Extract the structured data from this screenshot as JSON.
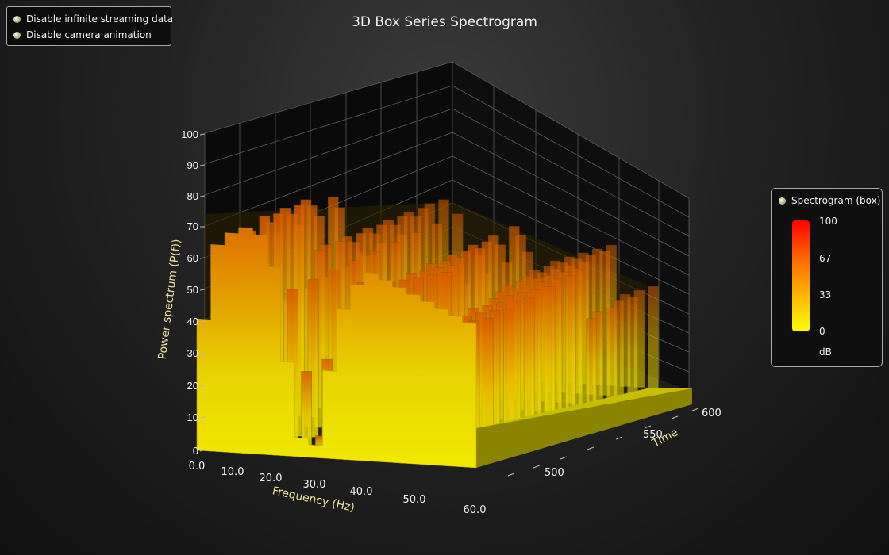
{
  "options": [
    {
      "label": "Disable infinite streaming data"
    },
    {
      "label": "Disable camera animation"
    }
  ],
  "chart_data": {
    "type": "3d-box-spectrogram",
    "title": "3D Box Series Spectrogram",
    "xlabel": "Frequency (Hz)",
    "ylabel": "Power spectrum (P(f))",
    "zlabel": "Time",
    "x_ticks": [
      "0.0",
      "10.0",
      "20.0",
      "30.0",
      "40.0",
      "50.0",
      "60.0"
    ],
    "y_ticks": [
      "0",
      "10",
      "20",
      "30",
      "40",
      "50",
      "60",
      "70",
      "80",
      "90",
      "100"
    ],
    "z_ticks": [
      "500",
      "550",
      "600"
    ],
    "xlim": [
      0,
      60
    ],
    "ylim": [
      0,
      100
    ],
    "zlim": [
      470,
      610
    ],
    "grid": true,
    "series": [
      {
        "name": "Spectrogram (box)",
        "front_profile_freq": [
          0,
          3,
          6,
          9,
          12,
          15,
          18,
          21,
          24,
          27,
          30,
          33,
          36,
          39,
          42,
          45,
          48,
          51,
          54,
          57,
          60
        ],
        "front_profile_power": [
          42,
          66,
          70,
          72,
          70,
          60,
          30,
          6,
          4,
          28,
          48,
          56,
          60,
          58,
          56,
          54,
          52,
          50,
          48,
          46,
          45
        ]
      }
    ],
    "legend": {
      "position": "right",
      "title": "Spectrogram (box)",
      "ticks": [
        "100",
        "67",
        "33",
        "0"
      ],
      "unit": "dB",
      "colors": [
        "#ffff00",
        "#ffb000",
        "#ff6a00",
        "#ff0000"
      ]
    }
  }
}
